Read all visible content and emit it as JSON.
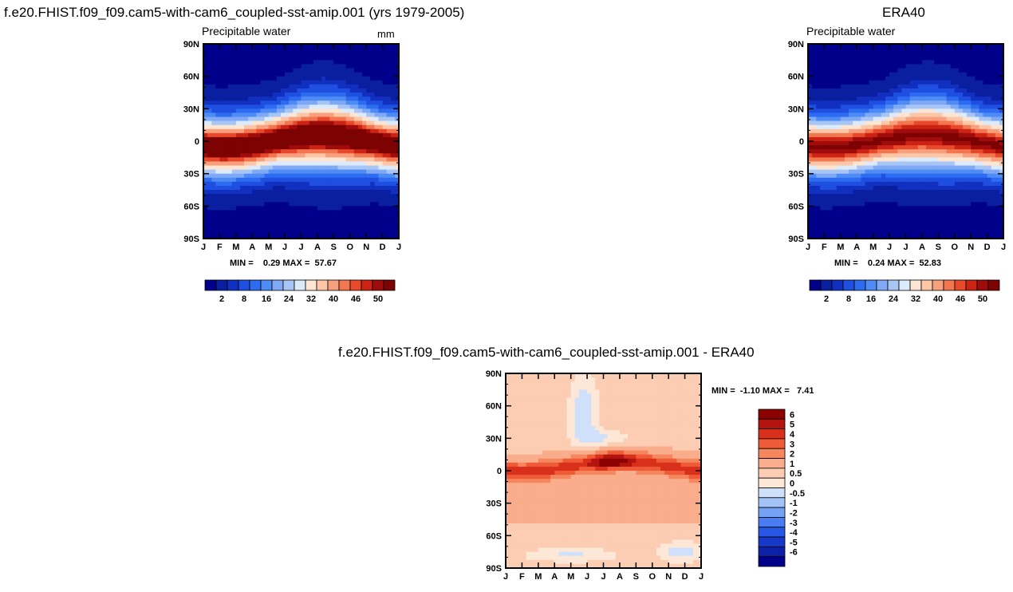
{
  "colors": {
    "precip_scale": [
      "#00008b",
      "#0a1ea0",
      "#1230c0",
      "#1f4fe0",
      "#2d6cf0",
      "#4f8bf5",
      "#7fa9f5",
      "#a8c6f5",
      "#dcebfb",
      "#fde5d4",
      "#fcc6a7",
      "#f8a07e",
      "#f2764f",
      "#e8492a",
      "#cc2314",
      "#a00c0c",
      "#7d0303"
    ],
    "diff_scale": [
      "#00008b",
      "#0d21a6",
      "#1838c9",
      "#2856e6",
      "#4a7df2",
      "#76a2f6",
      "#a3c3f6",
      "#cfe1fa",
      "#fde7d7",
      "#fccdb2",
      "#f9ad8c",
      "#f5875f",
      "#ef5a37",
      "#d8301a",
      "#b3150e",
      "#8b0000"
    ]
  },
  "chart_data": [
    {
      "type": "heatmap",
      "panel": "model",
      "figure_title": "f.e20.FHIST.f09_f09.cam5-with-cam6_coupled-sst-amip.001 (yrs 1979-2005)",
      "title": "Precipitable water",
      "units": "mm",
      "x_tick_labels": [
        "J",
        "F",
        "M",
        "A",
        "M",
        "J",
        "J",
        "A",
        "S",
        "O",
        "N",
        "D",
        "J"
      ],
      "y_tick_labels": [
        "90N",
        "60N",
        "30N",
        "0",
        "30S",
        "60S",
        "90S"
      ],
      "ylim": [
        -90,
        90
      ],
      "min_label": "MIN =",
      "min_value": "0.29",
      "max_label": "MAX =",
      "max_value": "57.67",
      "colorbar_labels": [
        "2",
        "8",
        "16",
        "24",
        "32",
        "40",
        "46",
        "50"
      ],
      "peak": 55.5,
      "shift": 1.0
    },
    {
      "type": "heatmap",
      "panel": "obs",
      "figure_title": "ERA40",
      "title": "Precipitable water",
      "x_tick_labels": [
        "J",
        "F",
        "M",
        "A",
        "M",
        "J",
        "J",
        "A",
        "S",
        "O",
        "N",
        "D",
        "J"
      ],
      "y_tick_labels": [
        "90N",
        "60N",
        "30N",
        "0",
        "30S",
        "60S",
        "90S"
      ],
      "ylim": [
        -90,
        90
      ],
      "min_label": "MIN =",
      "min_value": "0.24",
      "max_label": "MAX =",
      "max_value": "52.83",
      "colorbar_labels": [
        "2",
        "8",
        "16",
        "24",
        "32",
        "40",
        "46",
        "50"
      ],
      "peak": 51.0,
      "shift": 1.0
    },
    {
      "type": "heatmap",
      "panel": "diff",
      "figure_title": "f.e20.FHIST.f09_f09.cam5-with-cam6_coupled-sst-amip.001 - ERA40",
      "x_tick_labels": [
        "J",
        "F",
        "M",
        "A",
        "M",
        "J",
        "J",
        "A",
        "S",
        "O",
        "N",
        "D",
        "J"
      ],
      "y_tick_labels": [
        "90N",
        "60N",
        "30N",
        "0",
        "30S",
        "60S",
        "90S"
      ],
      "ylim": [
        -90,
        90
      ],
      "min_label": "MIN =",
      "min_value": "-1.10",
      "max_label": "MAX =",
      "max_value": "7.41",
      "colorbar_labels": [
        "6",
        "5",
        "4",
        "3",
        "2",
        "1",
        "0.5",
        "0",
        "-0.5",
        "-1",
        "-2",
        "-3",
        "-4",
        "-5",
        "-6"
      ]
    }
  ]
}
